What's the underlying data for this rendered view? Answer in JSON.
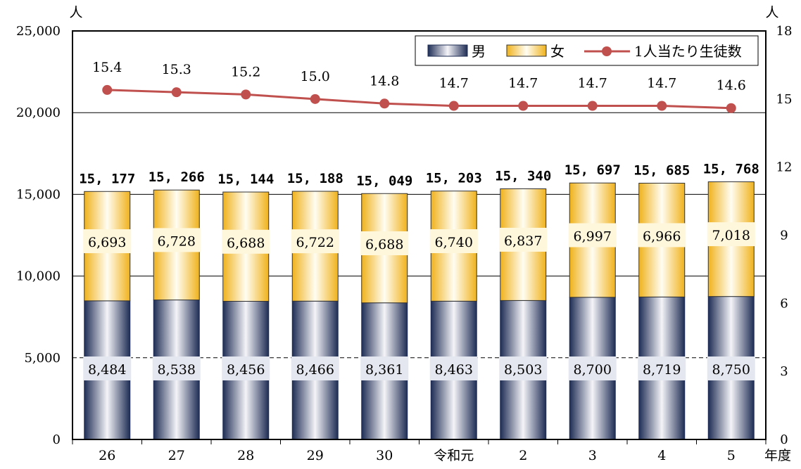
{
  "chart_data": {
    "type": "bar",
    "stacked": true,
    "categories": [
      "26",
      "27",
      "28",
      "29",
      "30",
      "令和元",
      "2",
      "3",
      "4",
      "5"
    ],
    "x_unit": "年度",
    "left_axis": {
      "unit": "人",
      "range": [
        0,
        25000
      ],
      "ticks": [
        "0",
        "5,000",
        "10,000",
        "15,000",
        "20,000",
        "25,000"
      ]
    },
    "right_axis": {
      "unit": "人",
      "range": [
        0,
        18
      ],
      "ticks": [
        "0",
        "3",
        "6",
        "9",
        "12",
        "15",
        "18"
      ]
    },
    "series": [
      {
        "name": "男",
        "kind": "bar",
        "axis": "left",
        "values": [
          8484,
          8538,
          8456,
          8466,
          8361,
          8463,
          8503,
          8700,
          8719,
          8750
        ],
        "labels": [
          "8,484",
          "8,538",
          "8,456",
          "8,466",
          "8,361",
          "8,463",
          "8,503",
          "8,700",
          "8,719",
          "8,750"
        ]
      },
      {
        "name": "女",
        "kind": "bar",
        "axis": "left",
        "values": [
          6693,
          6728,
          6688,
          6722,
          6688,
          6740,
          6837,
          6997,
          6966,
          7018
        ],
        "labels": [
          "6,693",
          "6,728",
          "6,688",
          "6,722",
          "6,688",
          "6,740",
          "6,837",
          "6,997",
          "6,966",
          "7,018"
        ]
      },
      {
        "name": "1人当たり生徒数",
        "kind": "line",
        "axis": "right",
        "values": [
          15.4,
          15.3,
          15.2,
          15.0,
          14.8,
          14.7,
          14.7,
          14.7,
          14.7,
          14.6
        ],
        "labels": [
          "15.4",
          "15.3",
          "15.2",
          "15.0",
          "14.8",
          "14.7",
          "14.7",
          "14.7",
          "14.7",
          "14.6"
        ]
      }
    ],
    "totals": [
      15177,
      15266,
      15144,
      15188,
      15049,
      15203,
      15340,
      15697,
      15685,
      15768
    ],
    "total_labels": [
      "15, 177",
      "15, 266",
      "15, 144",
      "15, 188",
      "15, 049",
      "15, 203",
      "15, 340",
      "15, 697",
      "15, 685",
      "15, 768"
    ],
    "legend_position": "top-right",
    "grid": "horizontal",
    "colors": {
      "male_dark": "#1f2d55",
      "male_light": "#f4f4f8",
      "female_dark": "#f0b21c",
      "female_light": "#fffdf2",
      "line": "#c0504d",
      "label_box_male": "#e4e7ef",
      "label_box_female": "#fff7dc"
    }
  }
}
